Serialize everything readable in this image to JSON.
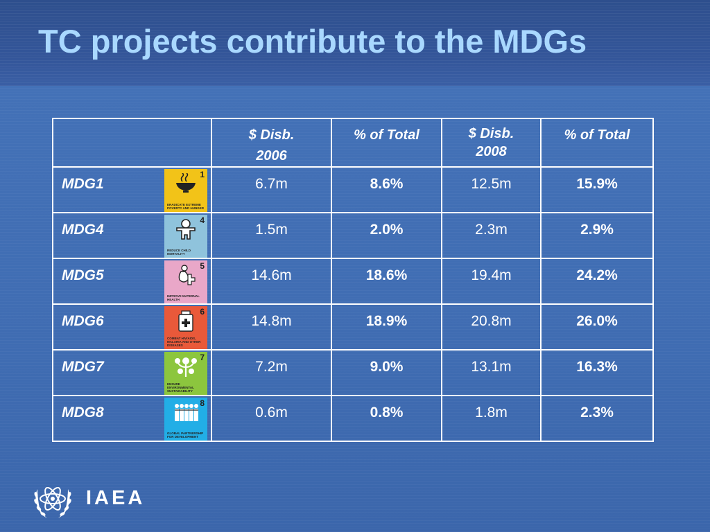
{
  "slide": {
    "title": "TC projects contribute to the MDGs"
  },
  "table": {
    "headers": {
      "col1": [
        "$ Disb.",
        "2006"
      ],
      "col2": [
        "% of Total"
      ],
      "col3": [
        "$ Disb.",
        "2008"
      ],
      "col4": [
        "% of Total"
      ]
    },
    "rows": [
      {
        "label": "MDG1",
        "icon": {
          "number": "1",
          "name": "hunger-bowl-icon",
          "color": "#f2c318",
          "caption": "ERADICATE EXTREME POVERTY AND HUNGER"
        },
        "disb_2006": "6.7m",
        "pct_2006": "8.6%",
        "disb_2008": "12.5m",
        "pct_2008": "15.9%"
      },
      {
        "label": "MDG4",
        "icon": {
          "number": "4",
          "name": "child-icon",
          "color": "#8fc3dc",
          "caption": "REDUCE CHILD MORTALITY"
        },
        "disb_2006": "1.5m",
        "pct_2006": "2.0%",
        "disb_2008": "2.3m",
        "pct_2008": "2.9%"
      },
      {
        "label": "MDG5",
        "icon": {
          "number": "5",
          "name": "pregnant-woman-icon",
          "color": "#e9a7c8",
          "caption": "IMPROVE MATERNAL HEALTH"
        },
        "disb_2006": "14.6m",
        "pct_2006": "18.6%",
        "disb_2008": "19.4m",
        "pct_2008": "24.2%"
      },
      {
        "label": "MDG6",
        "icon": {
          "number": "6",
          "name": "medicine-jar-icon",
          "color": "#e9593a",
          "caption": "COMBAT HIV/AIDS, MALARIA AND OTHER DISEASES"
        },
        "disb_2006": "14.8m",
        "pct_2006": "18.9%",
        "disb_2008": "20.8m",
        "pct_2008": "26.0%"
      },
      {
        "label": "MDG7",
        "icon": {
          "number": "7",
          "name": "plant-icon",
          "color": "#8cc63e",
          "caption": "ENSURE ENVIRONMENTAL SUSTAINABILITY"
        },
        "disb_2006": "7.2m",
        "pct_2006": "9.0%",
        "disb_2008": "13.1m",
        "pct_2008": "16.3%"
      },
      {
        "label": "MDG8",
        "icon": {
          "number": "8",
          "name": "people-group-icon",
          "color": "#22aee6",
          "caption": "GLOBAL PARTNERSHIP FOR DEVELOPMENT"
        },
        "disb_2006": "0.6m",
        "pct_2006": "0.8%",
        "disb_2008": "1.8m",
        "pct_2008": "2.3%"
      }
    ]
  },
  "footer": {
    "logo_icon": "iaea-atom-wreath-icon",
    "wordmark": "IAEA"
  }
}
